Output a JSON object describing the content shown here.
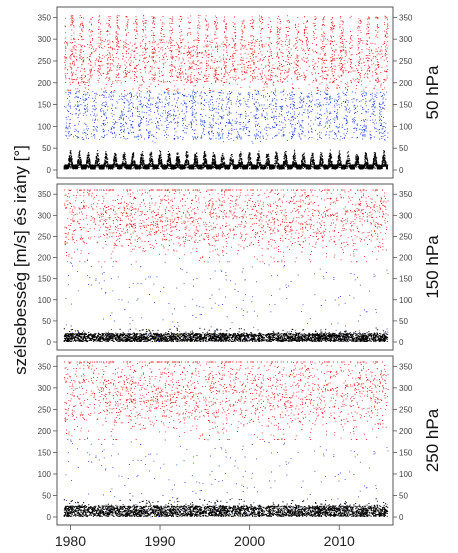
{
  "chart_data": {
    "type": "scatter",
    "ylabel": "szélsebesség [m/s] és irány [°]",
    "x_ticks": [
      "1980",
      "1990",
      "2000",
      "2010"
    ],
    "x_tick_values": [
      1980,
      1990,
      2000,
      2010
    ],
    "xlim": [
      1978.5,
      2016
    ],
    "y_ticks": [
      0,
      50,
      100,
      150,
      200,
      250,
      300,
      350
    ],
    "ylim": [
      0,
      360
    ],
    "grid": false,
    "colors": {
      "speed": "#000000",
      "direction_westerly": "#e31a1c",
      "direction_other": "#1f3fd1"
    },
    "panels": [
      {
        "level": "50 hPa",
        "speed_range": [
          0,
          45
        ],
        "speed_seasonal": true,
        "direction_red_range": [
          180,
          355
        ],
        "direction_blue_range": [
          60,
          180
        ],
        "direction_seasonal": true
      },
      {
        "level": "150 hPa",
        "speed_range": [
          0,
          35
        ],
        "speed_seasonal": false,
        "direction_red_range": [
          190,
          360
        ],
        "direction_blue_range": [
          0,
          190
        ],
        "direction_seasonal": false
      },
      {
        "level": "250 hPa",
        "speed_range": [
          0,
          45
        ],
        "speed_seasonal": false,
        "direction_red_range": [
          180,
          360
        ],
        "direction_blue_range": [
          0,
          180
        ],
        "direction_seasonal": false
      }
    ]
  }
}
